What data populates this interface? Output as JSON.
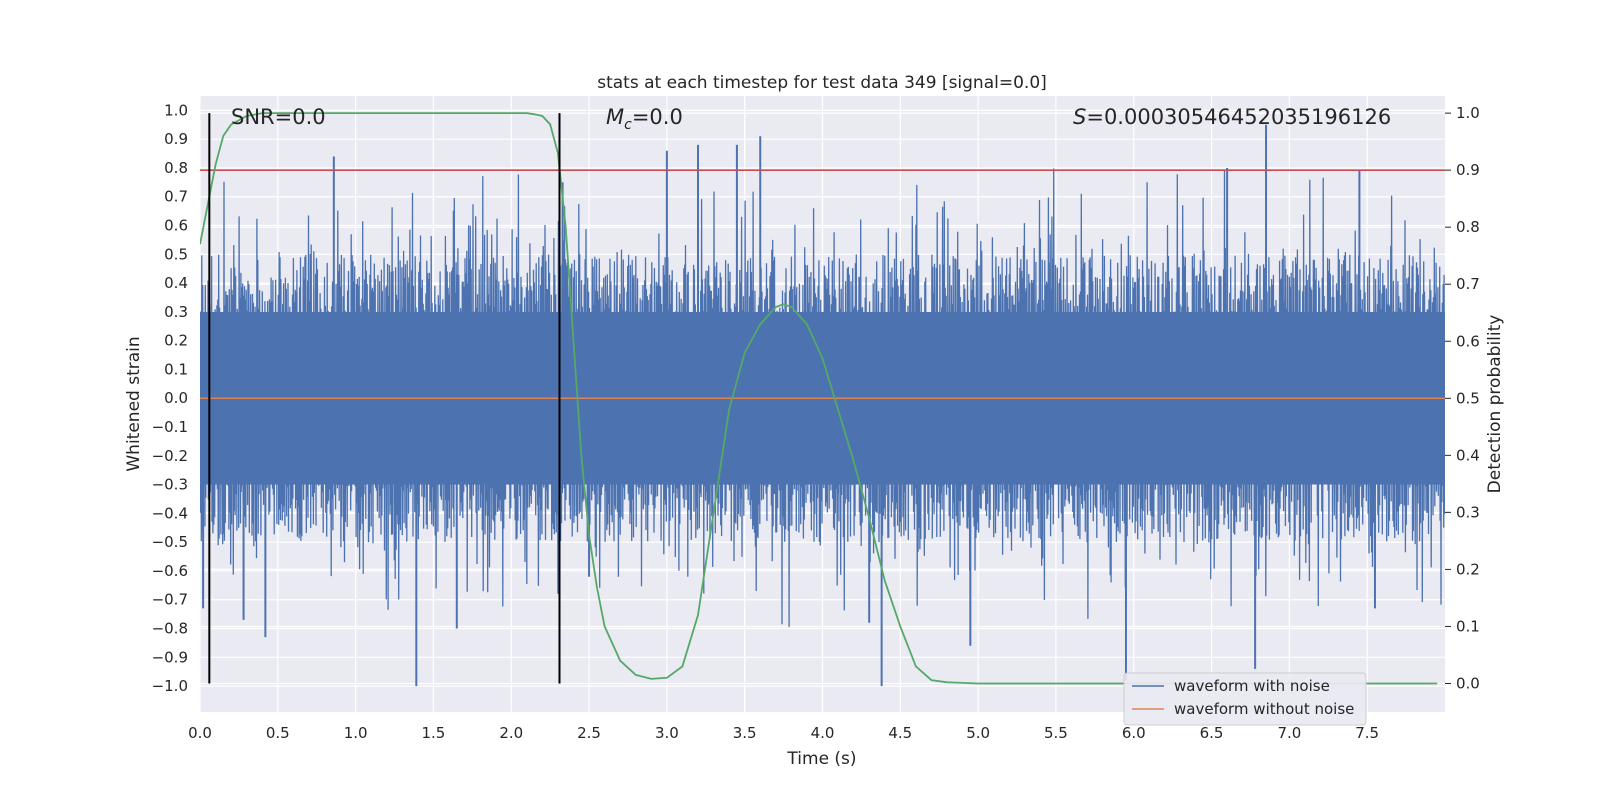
{
  "chart_data": {
    "type": "line",
    "title": "stats at each timestep for test data 349 [signal=0.0]",
    "xlabel": "Time (s)",
    "ylabel_left": "Whitened strain",
    "ylabel_right": "Detection probability",
    "xlim": [
      0.0,
      8.0
    ],
    "ylim_left": [
      -1.09,
      1.05
    ],
    "ylim_right": [
      -0.05,
      1.03
    ],
    "x_ticks": [
      "0.0",
      "0.5",
      "1.0",
      "1.5",
      "2.0",
      "2.5",
      "3.0",
      "3.5",
      "4.0",
      "4.5",
      "5.0",
      "5.5",
      "6.0",
      "6.5",
      "7.0",
      "7.5"
    ],
    "y_ticks_left": [
      "1.0",
      "0.9",
      "0.8",
      "0.7",
      "0.6",
      "0.5",
      "0.4",
      "0.3",
      "0.2",
      "0.1",
      "0.0",
      "-0.1",
      "-0.2",
      "-0.3",
      "-0.4",
      "-0.5",
      "-0.6",
      "-0.7",
      "-0.8",
      "-0.9",
      "-1.0"
    ],
    "y_ticks_right": [
      "1.0",
      "0.9",
      "0.8",
      "0.7",
      "0.6",
      "0.5",
      "0.4",
      "0.3",
      "0.2",
      "0.1",
      "0.0"
    ],
    "grid": true,
    "legend_position": "lower-right",
    "annotations": {
      "snr": "SNR=0.0",
      "mc_symbol": "M",
      "mc_sub": "c",
      "mc_value": "=0.0",
      "s_symbol": "S",
      "s_value": "=0.00030546452035196126"
    },
    "series": [
      {
        "name": "waveform with noise",
        "color": "#4c72b0",
        "kind": "noise-strain",
        "core_amplitude": 0.3,
        "peak_amplitude": 1.0
      },
      {
        "name": "waveform without noise",
        "color": "#dd8452",
        "y": 0.0
      }
    ],
    "detection_probability": {
      "color": "#55a868",
      "x": [
        0.0,
        0.05,
        0.1,
        0.15,
        0.2,
        0.3,
        0.4,
        0.6,
        1.0,
        1.5,
        2.0,
        2.1,
        2.15,
        2.2,
        2.25,
        2.3,
        2.35,
        2.4,
        2.45,
        2.5,
        2.55,
        2.6,
        2.7,
        2.8,
        2.9,
        3.0,
        3.1,
        3.2,
        3.3,
        3.4,
        3.5,
        3.6,
        3.7,
        3.75,
        3.8,
        3.9,
        4.0,
        4.1,
        4.2,
        4.3,
        4.4,
        4.5,
        4.6,
        4.7,
        4.8,
        4.9,
        5.0,
        6.0,
        7.0,
        7.95
      ],
      "y": [
        0.77,
        0.84,
        0.91,
        0.96,
        0.98,
        0.995,
        1.0,
        1.0,
        1.0,
        1.0,
        1.0,
        1.0,
        0.998,
        0.995,
        0.98,
        0.93,
        0.8,
        0.6,
        0.4,
        0.26,
        0.17,
        0.1,
        0.04,
        0.015,
        0.008,
        0.01,
        0.03,
        0.12,
        0.3,
        0.48,
        0.58,
        0.63,
        0.66,
        0.665,
        0.66,
        0.63,
        0.57,
        0.48,
        0.39,
        0.29,
        0.18,
        0.1,
        0.03,
        0.006,
        0.002,
        0.001,
        0.0,
        0.0,
        0.0,
        0.0
      ]
    },
    "horizontal_lines": [
      {
        "axis": "right",
        "y": 0.9,
        "color": "#c44e52"
      }
    ],
    "vertical_lines": [
      {
        "x": 0.06,
        "color": "#000000"
      },
      {
        "x": 2.31,
        "color": "#000000"
      }
    ],
    "noise_spikes": [
      {
        "x": 0.02,
        "y": -0.73
      },
      {
        "x": 0.28,
        "y": -0.77
      },
      {
        "x": 0.42,
        "y": -0.83
      },
      {
        "x": 0.86,
        "y": 0.84
      },
      {
        "x": 1.39,
        "y": -1.0
      },
      {
        "x": 1.65,
        "y": -0.8
      },
      {
        "x": 2.33,
        "y": 0.75
      },
      {
        "x": 2.5,
        "y": -0.62
      },
      {
        "x": 3.0,
        "y": 0.86
      },
      {
        "x": 3.2,
        "y": 0.88
      },
      {
        "x": 3.45,
        "y": 0.88
      },
      {
        "x": 3.6,
        "y": 0.91
      },
      {
        "x": 4.38,
        "y": -1.0
      },
      {
        "x": 4.3,
        "y": -0.78
      },
      {
        "x": 4.95,
        "y": -0.86
      },
      {
        "x": 5.95,
        "y": -0.98
      },
      {
        "x": 6.6,
        "y": 0.8
      },
      {
        "x": 6.78,
        "y": -0.94
      },
      {
        "x": 6.85,
        "y": 0.95
      },
      {
        "x": 7.45,
        "y": 0.79
      },
      {
        "x": 7.55,
        "y": -0.73
      }
    ]
  }
}
